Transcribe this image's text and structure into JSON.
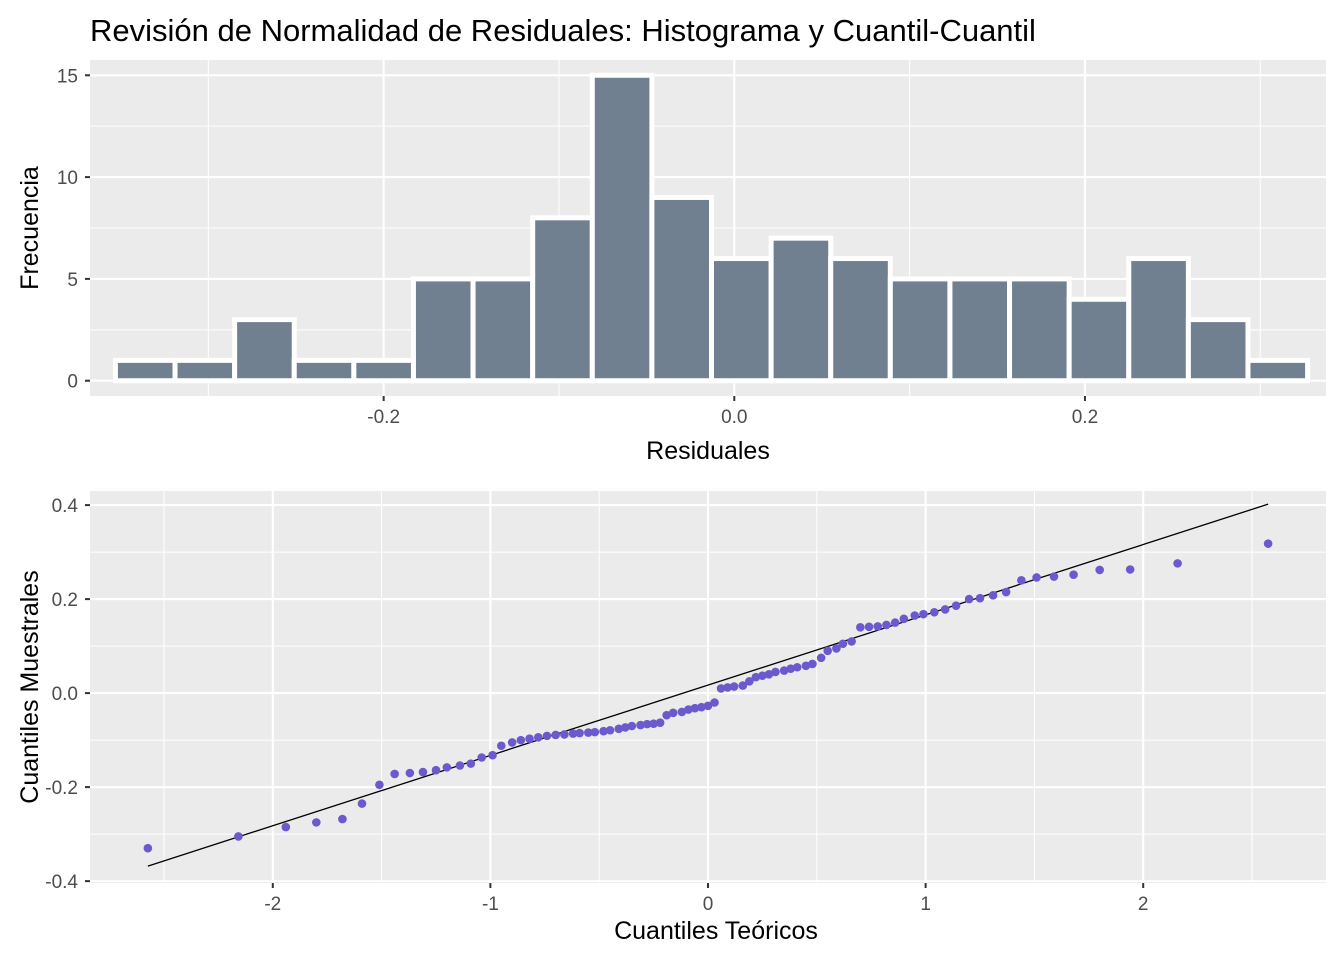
{
  "title": "Revisión de Normalidad de Residuales: Histograma y Cuantil-Cuantil",
  "colors": {
    "panel": "#ebebeb",
    "bar_fill": "#708090",
    "bar_outline": "#ffffff",
    "point": "#6a5acd",
    "line": "#000000",
    "grid": "#ffffff"
  },
  "chart_data": [
    {
      "type": "bar",
      "subtype": "histogram",
      "xlabel": "Residuales",
      "ylabel": "Frecuencia",
      "xlim": [
        -0.3675,
        0.3375
      ],
      "ylim": [
        -0.75,
        15.75
      ],
      "x_ticks": [
        -0.2,
        0.0,
        0.2
      ],
      "x_tick_labels": [
        "-0.2",
        "0.0",
        "0.2"
      ],
      "y_ticks": [
        0,
        5,
        10,
        15
      ],
      "y_tick_labels": [
        "0",
        "5",
        "10",
        "15"
      ],
      "bin_width": 0.034,
      "bin_centers": [
        -0.336,
        -0.302,
        -0.268,
        -0.234,
        -0.2,
        -0.166,
        -0.132,
        -0.098,
        -0.064,
        -0.03,
        0.004,
        0.038,
        0.072,
        0.106,
        0.14,
        0.174,
        0.208,
        0.242,
        0.276,
        0.31
      ],
      "values": [
        1,
        1,
        3,
        1,
        1,
        5,
        5,
        8,
        15,
        9,
        6,
        7,
        6,
        5,
        5,
        5,
        4,
        6,
        3,
        1
      ],
      "grid": true
    },
    {
      "type": "scatter",
      "subtype": "qq-plot",
      "xlabel": "Cuantiles Teóricos",
      "ylabel": "Cuantiles Muestrales",
      "xlim": [
        -2.84,
        2.84
      ],
      "ylim": [
        -0.404,
        0.43
      ],
      "x_ticks": [
        -2,
        -1,
        0,
        1,
        2
      ],
      "x_tick_labels": [
        "-2",
        "-1",
        "0",
        "1",
        "2"
      ],
      "y_ticks": [
        -0.4,
        -0.2,
        0.0,
        0.2,
        0.4
      ],
      "y_tick_labels": [
        "-0.4",
        "-0.2",
        "0.0",
        "0.2",
        "0.4"
      ],
      "points": [
        [
          -2.574,
          -0.33
        ],
        [
          -2.158,
          -0.305
        ],
        [
          -1.94,
          -0.285
        ],
        [
          -1.8,
          -0.275
        ],
        [
          -1.68,
          -0.268
        ],
        [
          -1.59,
          -0.235
        ],
        [
          -1.51,
          -0.195
        ],
        [
          -1.44,
          -0.172
        ],
        [
          -1.37,
          -0.17
        ],
        [
          -1.31,
          -0.168
        ],
        [
          -1.25,
          -0.164
        ],
        [
          -1.2,
          -0.158
        ],
        [
          -1.14,
          -0.154
        ],
        [
          -1.09,
          -0.15
        ],
        [
          -1.04,
          -0.137
        ],
        [
          -0.99,
          -0.132
        ],
        [
          -0.95,
          -0.112
        ],
        [
          -0.9,
          -0.105
        ],
        [
          -0.86,
          -0.1
        ],
        [
          -0.82,
          -0.097
        ],
        [
          -0.78,
          -0.094
        ],
        [
          -0.74,
          -0.091
        ],
        [
          -0.7,
          -0.089
        ],
        [
          -0.66,
          -0.088
        ],
        [
          -0.62,
          -0.086
        ],
        [
          -0.59,
          -0.085
        ],
        [
          -0.55,
          -0.084
        ],
        [
          -0.52,
          -0.083
        ],
        [
          -0.48,
          -0.081
        ],
        [
          -0.45,
          -0.079
        ],
        [
          -0.41,
          -0.076
        ],
        [
          -0.38,
          -0.073
        ],
        [
          -0.35,
          -0.07
        ],
        [
          -0.31,
          -0.068
        ],
        [
          -0.28,
          -0.066
        ],
        [
          -0.25,
          -0.065
        ],
        [
          -0.22,
          -0.063
        ],
        [
          -0.19,
          -0.047
        ],
        [
          -0.16,
          -0.042
        ],
        [
          -0.12,
          -0.04
        ],
        [
          -0.09,
          -0.035
        ],
        [
          -0.06,
          -0.032
        ],
        [
          -0.03,
          -0.03
        ],
        [
          0.0,
          -0.027
        ],
        [
          0.03,
          -0.02
        ],
        [
          0.06,
          0.01
        ],
        [
          0.09,
          0.012
        ],
        [
          0.12,
          0.014
        ],
        [
          0.16,
          0.016
        ],
        [
          0.19,
          0.025
        ],
        [
          0.22,
          0.034
        ],
        [
          0.25,
          0.037
        ],
        [
          0.28,
          0.04
        ],
        [
          0.31,
          0.045
        ],
        [
          0.35,
          0.048
        ],
        [
          0.38,
          0.052
        ],
        [
          0.41,
          0.055
        ],
        [
          0.45,
          0.058
        ],
        [
          0.48,
          0.062
        ],
        [
          0.52,
          0.075
        ],
        [
          0.55,
          0.09
        ],
        [
          0.59,
          0.095
        ],
        [
          0.62,
          0.105
        ],
        [
          0.66,
          0.11
        ],
        [
          0.7,
          0.14
        ],
        [
          0.74,
          0.141
        ],
        [
          0.78,
          0.142
        ],
        [
          0.82,
          0.145
        ],
        [
          0.86,
          0.15
        ],
        [
          0.9,
          0.158
        ],
        [
          0.95,
          0.165
        ],
        [
          0.99,
          0.168
        ],
        [
          1.04,
          0.172
        ],
        [
          1.09,
          0.178
        ],
        [
          1.14,
          0.186
        ],
        [
          1.2,
          0.2
        ],
        [
          1.25,
          0.202
        ],
        [
          1.31,
          0.208
        ],
        [
          1.37,
          0.215
        ],
        [
          1.44,
          0.24
        ],
        [
          1.51,
          0.246
        ],
        [
          1.59,
          0.248
        ],
        [
          1.68,
          0.252
        ],
        [
          1.8,
          0.262
        ],
        [
          1.94,
          0.263
        ],
        [
          2.158,
          0.276
        ],
        [
          2.574,
          0.318
        ]
      ],
      "reference_line": {
        "x": [
          -2.574,
          2.574
        ],
        "y": [
          -0.368,
          0.402
        ]
      },
      "grid": true
    }
  ]
}
